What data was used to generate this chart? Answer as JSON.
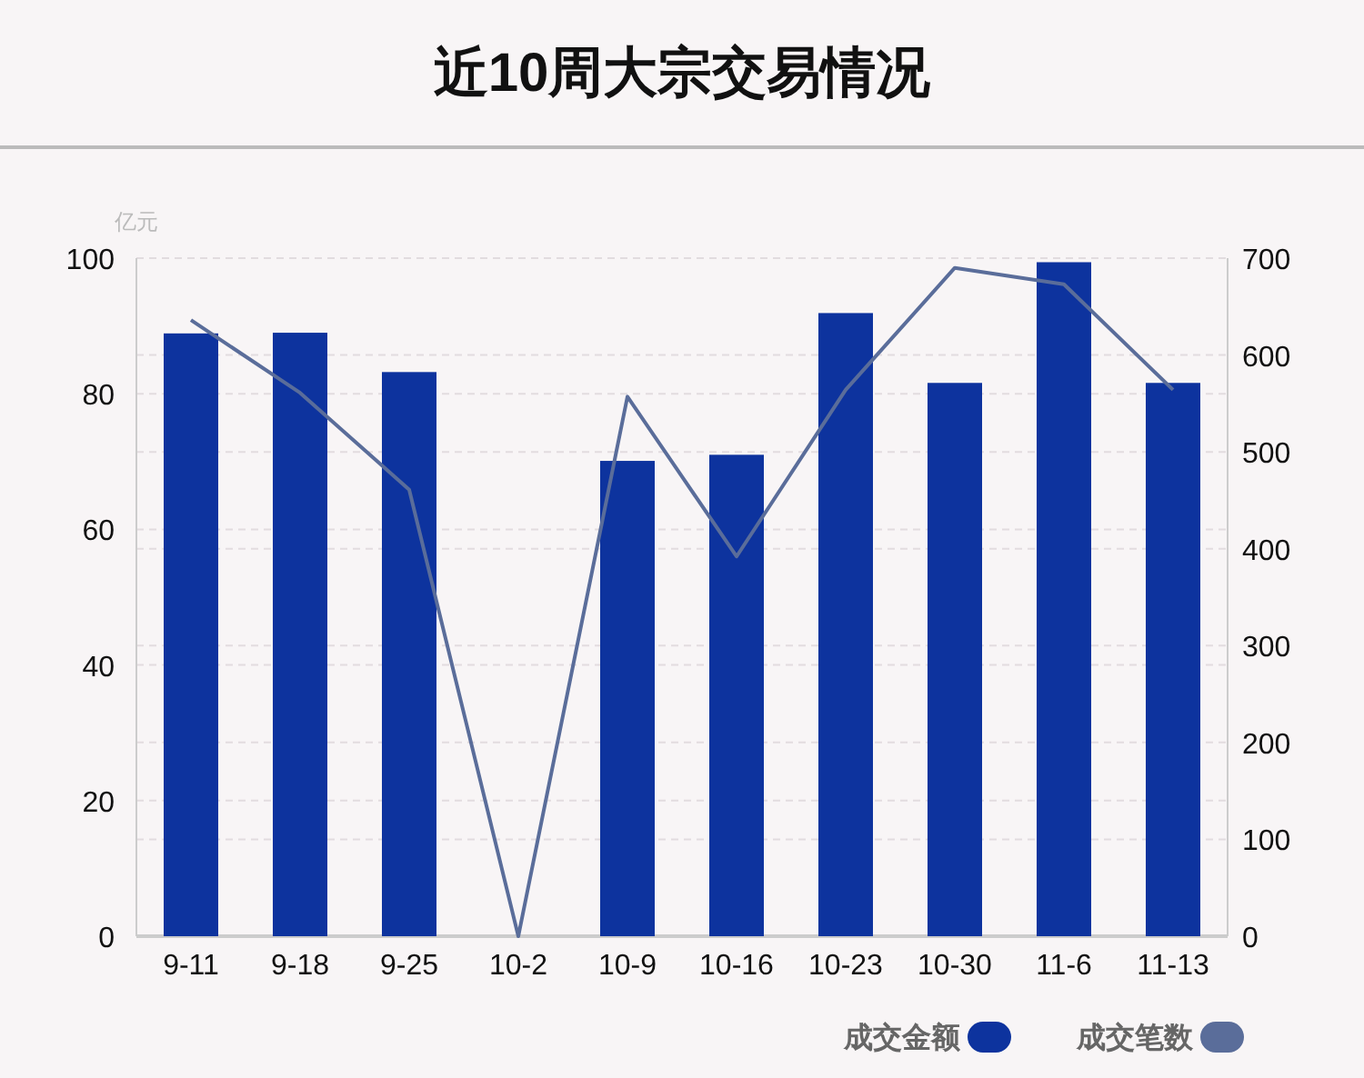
{
  "chart_data": {
    "type": "bar",
    "title": "近10周大宗交易情况",
    "annotations": [
      "亿元"
    ],
    "categories": [
      "9-11",
      "9-18",
      "9-25",
      "10-2",
      "10-9",
      "10-16",
      "10-23",
      "10-30",
      "11-6",
      "11-13"
    ],
    "series": [
      {
        "name": "成交金额",
        "color": "#0d339e",
        "values": [
          88.9,
          89,
          83.2,
          null,
          70.1,
          71.0,
          91.9,
          81.6,
          99.4,
          81.6
        ]
      },
      {
        "name": "成交笔数",
        "type": "line",
        "axis": "y2",
        "color": "#5a6d9a",
        "values": [
          636,
          561,
          461,
          0,
          557,
          392,
          564,
          690,
          673,
          564
        ]
      }
    ],
    "ylim": [
      0,
      100
    ],
    "yticks": [
      0,
      20,
      40,
      60,
      80,
      100
    ],
    "y2lim": [
      0,
      700
    ],
    "y2ticks": [
      0,
      100,
      200,
      300,
      400,
      500,
      600,
      700
    ],
    "grid": true,
    "legend": "bottom right",
    "marker": "none",
    "line_style": "solid"
  }
}
